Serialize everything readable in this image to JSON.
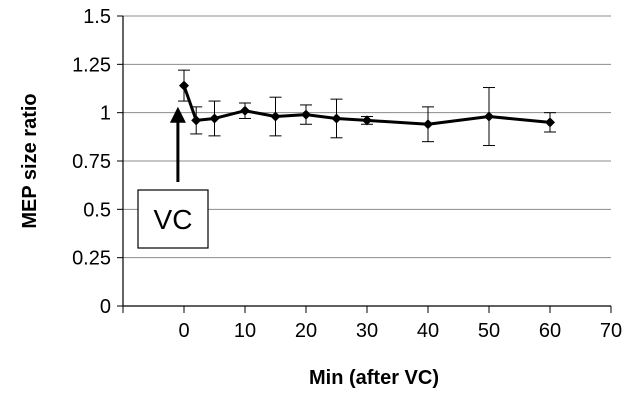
{
  "chart_data": {
    "type": "line",
    "title": "",
    "xlabel": "Min (after VC)",
    "ylabel": "MEP size ratio",
    "xlim": [
      -10,
      70
    ],
    "ylim": [
      0,
      1.5
    ],
    "x_ticks": [
      0,
      10,
      20,
      30,
      40,
      50,
      60,
      70
    ],
    "x_tick_labels": [
      "0",
      "10",
      "20",
      "30",
      "40",
      "50",
      "60",
      "70"
    ],
    "y_ticks": [
      0,
      0.25,
      0.5,
      0.75,
      1,
      1.25,
      1.5
    ],
    "y_tick_labels": [
      "0",
      "0.25",
      "0.5",
      "0.75",
      "1",
      "1.25",
      "1.5"
    ],
    "grid": "horizontal",
    "legend": "none",
    "series": [
      {
        "x": [
          0,
          2,
          5,
          10,
          15,
          20,
          25,
          30,
          40,
          50,
          60
        ],
        "y": [
          1.14,
          0.96,
          0.97,
          1.01,
          0.98,
          0.99,
          0.97,
          0.96,
          0.94,
          0.98,
          0.95
        ],
        "error": [
          0.08,
          0.07,
          0.09,
          0.04,
          0.1,
          0.05,
          0.1,
          0.02,
          0.09,
          0.15,
          0.05
        ],
        "color": "#000000"
      }
    ],
    "annotation": {
      "text": "VC",
      "arrow_to_x": -1,
      "arrow_to_y": 1.02
    }
  }
}
